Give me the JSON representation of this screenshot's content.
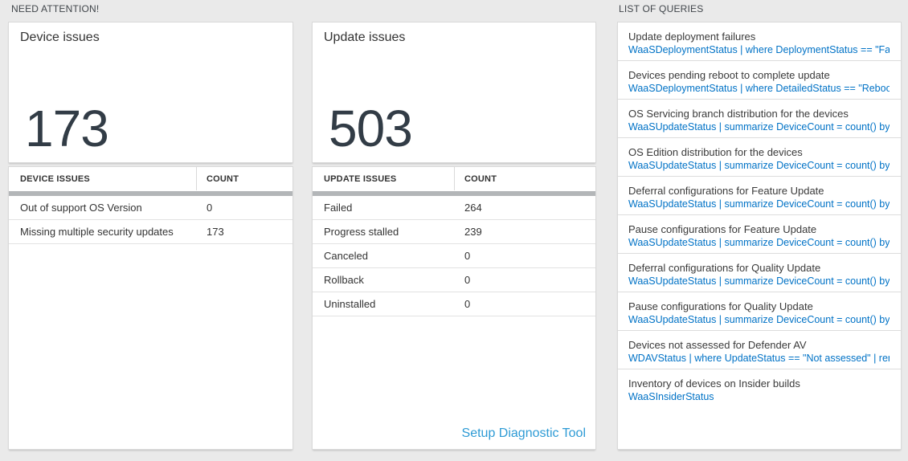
{
  "colors": {
    "background": "#eaeaea",
    "query_blue": "#0072c6",
    "link_blue": "#2e9bd5",
    "number_color": "#323c46",
    "scrollbar_gray": "#b3b6b8"
  },
  "sections": {
    "need_attention_label": "NEED ATTENTION!",
    "queries_label": "LIST OF QUERIES"
  },
  "cards": {
    "device": {
      "title": "Device issues",
      "count": "173"
    },
    "update": {
      "title": "Update issues",
      "count": "503"
    }
  },
  "tables": {
    "device": {
      "headers": [
        "DEVICE ISSUES",
        "COUNT"
      ],
      "rows": [
        {
          "label": "Out of support OS Version",
          "count": "0"
        },
        {
          "label": "Missing multiple security updates",
          "count": "173"
        }
      ]
    },
    "update": {
      "headers": [
        "UPDATE ISSUES",
        "COUNT"
      ],
      "rows": [
        {
          "label": "Failed",
          "count": "264"
        },
        {
          "label": "Progress stalled",
          "count": "239"
        },
        {
          "label": "Canceled",
          "count": "0"
        },
        {
          "label": "Rollback",
          "count": "0"
        },
        {
          "label": "Uninstalled",
          "count": "0"
        }
      ],
      "link_label": "Setup Diagnostic Tool"
    }
  },
  "queries": {
    "items": [
      {
        "title": "Update deployment failures",
        "query": "WaaSDeploymentStatus | where DeploymentStatus == \"Failed\" |..."
      },
      {
        "title": "Devices pending reboot to complete update",
        "query": "WaaSDeploymentStatus | where DetailedStatus == \"Reboot pend..."
      },
      {
        "title": "OS Servicing branch distribution for the devices",
        "query": "WaaSUpdateStatus | summarize DeviceCount = count() by OSSer..."
      },
      {
        "title": "OS Edition distribution for the devices",
        "query": "WaaSUpdateStatus | summarize DeviceCount = count() by OSEdit..."
      },
      {
        "title": "Deferral configurations for Feature Update",
        "query": "WaaSUpdateStatus | summarize DeviceCount = count() by Featur..."
      },
      {
        "title": "Pause configurations for Feature Update",
        "query": "WaaSUpdateStatus | summarize DeviceCount = count() by Featur..."
      },
      {
        "title": "Deferral configurations for Quality Update",
        "query": "WaaSUpdateStatus | summarize DeviceCount = count() by Qualit..."
      },
      {
        "title": "Pause configurations for Quality Update",
        "query": "WaaSUpdateStatus | summarize DeviceCount = count() by Qualit..."
      },
      {
        "title": "Devices not assessed for Defender AV",
        "query": "WDAVStatus | where UpdateStatus == \"Not assessed\" | render ta..."
      },
      {
        "title": "Inventory of devices on Insider builds",
        "query": "WaaSInsiderStatus"
      }
    ]
  }
}
